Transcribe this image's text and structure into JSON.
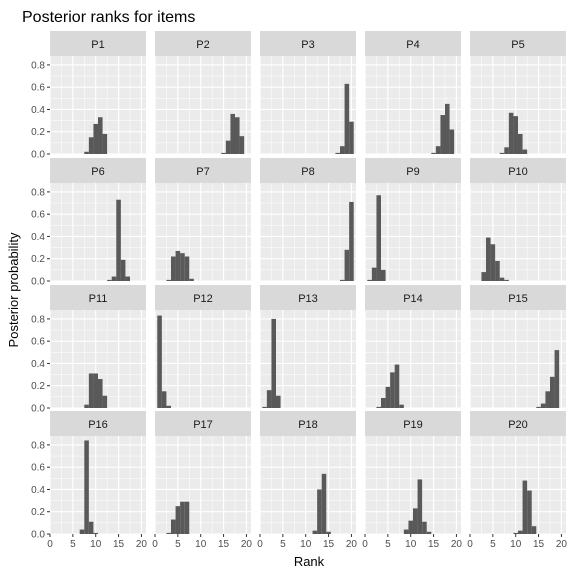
{
  "chart_data": {
    "type": "bar",
    "title": "Posterior ranks for items",
    "xlabel": "Rank",
    "ylabel": "Posterior probability",
    "xlim": [
      0,
      21
    ],
    "ylim": [
      0,
      0.88
    ],
    "x_ticks": [
      0,
      5,
      10,
      15,
      20
    ],
    "y_ticks": [
      0.0,
      0.2,
      0.4,
      0.6,
      0.8
    ],
    "grid": true,
    "facets": [
      {
        "name": "P1",
        "ranks": [
          8,
          9,
          10,
          11,
          12
        ],
        "values": [
          0.02,
          0.15,
          0.27,
          0.33,
          0.18
        ]
      },
      {
        "name": "P2",
        "ranks": [
          15,
          16,
          17,
          18,
          19
        ],
        "values": [
          0.01,
          0.12,
          0.36,
          0.33,
          0.16
        ]
      },
      {
        "name": "P3",
        "ranks": [
          17,
          18,
          19,
          20
        ],
        "values": [
          0.01,
          0.07,
          0.63,
          0.29
        ]
      },
      {
        "name": "P4",
        "ranks": [
          15,
          16,
          17,
          18,
          19
        ],
        "values": [
          0.01,
          0.07,
          0.35,
          0.45,
          0.22
        ]
      },
      {
        "name": "P5",
        "ranks": [
          7,
          8,
          9,
          10,
          11,
          12
        ],
        "values": [
          0.01,
          0.06,
          0.37,
          0.34,
          0.18,
          0.04
        ]
      },
      {
        "name": "P6",
        "ranks": [
          13,
          14,
          15,
          16,
          17
        ],
        "values": [
          0.01,
          0.04,
          0.73,
          0.19,
          0.04
        ]
      },
      {
        "name": "P7",
        "ranks": [
          3,
          4,
          5,
          6,
          7,
          8
        ],
        "values": [
          0.01,
          0.22,
          0.27,
          0.25,
          0.22,
          0.02
        ]
      },
      {
        "name": "P8",
        "ranks": [
          18,
          19,
          20
        ],
        "values": [
          0.01,
          0.28,
          0.71
        ]
      },
      {
        "name": "P9",
        "ranks": [
          1,
          2,
          3,
          4
        ],
        "values": [
          0.01,
          0.12,
          0.77,
          0.1
        ]
      },
      {
        "name": "P10",
        "ranks": [
          3,
          4,
          5,
          6,
          7,
          8
        ],
        "values": [
          0.08,
          0.39,
          0.33,
          0.18,
          0.03,
          0.01
        ]
      },
      {
        "name": "P11",
        "ranks": [
          8,
          9,
          10,
          11,
          12
        ],
        "values": [
          0.03,
          0.31,
          0.31,
          0.26,
          0.11
        ]
      },
      {
        "name": "P12",
        "ranks": [
          1,
          2,
          3
        ],
        "values": [
          0.83,
          0.15,
          0.02
        ]
      },
      {
        "name": "P13",
        "ranks": [
          1,
          2,
          3,
          4
        ],
        "values": [
          0.01,
          0.16,
          0.8,
          0.11
        ]
      },
      {
        "name": "P14",
        "ranks": [
          3,
          4,
          5,
          6,
          7,
          8
        ],
        "values": [
          0.01,
          0.09,
          0.19,
          0.32,
          0.39,
          0.03
        ]
      },
      {
        "name": "P15",
        "ranks": [
          15,
          16,
          17,
          18,
          19
        ],
        "values": [
          0.01,
          0.04,
          0.15,
          0.28,
          0.52
        ]
      },
      {
        "name": "P16",
        "ranks": [
          7,
          8,
          9,
          10
        ],
        "values": [
          0.04,
          0.84,
          0.11,
          0.01
        ]
      },
      {
        "name": "P17",
        "ranks": [
          3,
          4,
          5,
          6,
          7
        ],
        "values": [
          0.01,
          0.13,
          0.25,
          0.29,
          0.29
        ]
      },
      {
        "name": "P18",
        "ranks": [
          12,
          13,
          14,
          15
        ],
        "values": [
          0.03,
          0.4,
          0.54,
          0.02
        ]
      },
      {
        "name": "P19",
        "ranks": [
          9,
          10,
          11,
          12,
          13,
          14
        ],
        "values": [
          0.04,
          0.12,
          0.23,
          0.49,
          0.11,
          0.02
        ]
      },
      {
        "name": "P20",
        "ranks": [
          10,
          11,
          12,
          13,
          14
        ],
        "values": [
          0.01,
          0.03,
          0.48,
          0.39,
          0.07
        ]
      }
    ]
  }
}
